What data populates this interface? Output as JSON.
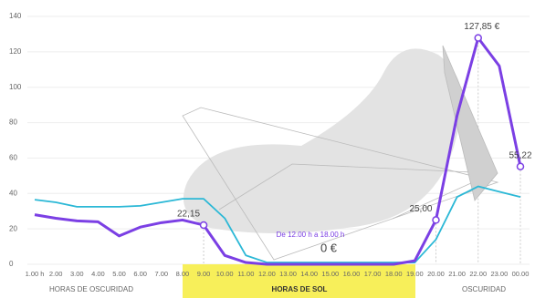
{
  "chart_data": {
    "type": "line",
    "categories": [
      "1.00 h",
      "2.00",
      "3.00",
      "4.00",
      "5.00",
      "6.00",
      "7.00",
      "8.00",
      "9.00",
      "10.00",
      "11.00",
      "12.00",
      "13.00",
      "14.00",
      "15.00",
      "16.00",
      "17.00",
      "18.00",
      "19.00",
      "20.00",
      "21.00",
      "22.00",
      "23.00",
      "00.00"
    ],
    "series": [
      {
        "color": "#7b3fe4",
        "values": [
          28,
          26,
          24.5,
          24,
          16,
          21,
          23.5,
          25,
          22.15,
          5,
          1,
          0,
          0,
          0,
          0,
          0,
          0,
          0,
          2,
          25,
          84,
          127.85,
          112,
          55.22
        ],
        "value_labels": [
          null,
          null,
          null,
          null,
          null,
          null,
          null,
          null,
          "22,15",
          null,
          null,
          null,
          null,
          null,
          null,
          null,
          null,
          null,
          null,
          "25,00",
          null,
          "127,85 €",
          null,
          "55,22"
        ]
      },
      {
        "color": "#2bb8d6",
        "values": [
          36.5,
          35,
          32.5,
          32.5,
          32.5,
          33,
          35,
          37,
          37,
          26,
          5,
          1,
          1,
          1,
          1,
          1,
          1,
          1,
          1,
          14,
          38,
          44,
          41,
          38
        ]
      }
    ],
    "ylim": [
      0,
      140
    ],
    "yticks": [
      0,
      20,
      40,
      60,
      80,
      100,
      120,
      140
    ],
    "grid": true,
    "annotations": [
      "De 12.00 h a 18.00 h",
      "0 €"
    ],
    "bands": [
      "HORAS DE OSCURIDAD",
      "HORAS DE SOL",
      "OSCURIDAD"
    ]
  }
}
